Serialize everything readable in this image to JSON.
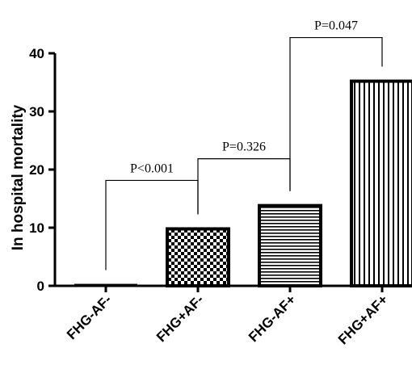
{
  "chart_data": {
    "type": "bar",
    "categories": [
      "FHG-AF-",
      "FHG+AF-",
      "FHG-AF+",
      "FHG+AF+"
    ],
    "values": [
      0.2,
      9.8,
      13.8,
      35.2
    ],
    "patterns": [
      "solid",
      "checker",
      "horizontal",
      "vertical"
    ],
    "xlabel": "",
    "ylabel": "In hospital mortality",
    "ylim": [
      0,
      40
    ],
    "yticks": [
      0,
      10,
      20,
      30,
      40
    ],
    "grid": false,
    "annotations": [
      {
        "label": "P<0.001",
        "from": 0,
        "to": 1
      },
      {
        "label": "P=0.326",
        "from": 1,
        "to": 2
      },
      {
        "label": "P=0.047",
        "from": 2,
        "to": 3
      }
    ]
  }
}
